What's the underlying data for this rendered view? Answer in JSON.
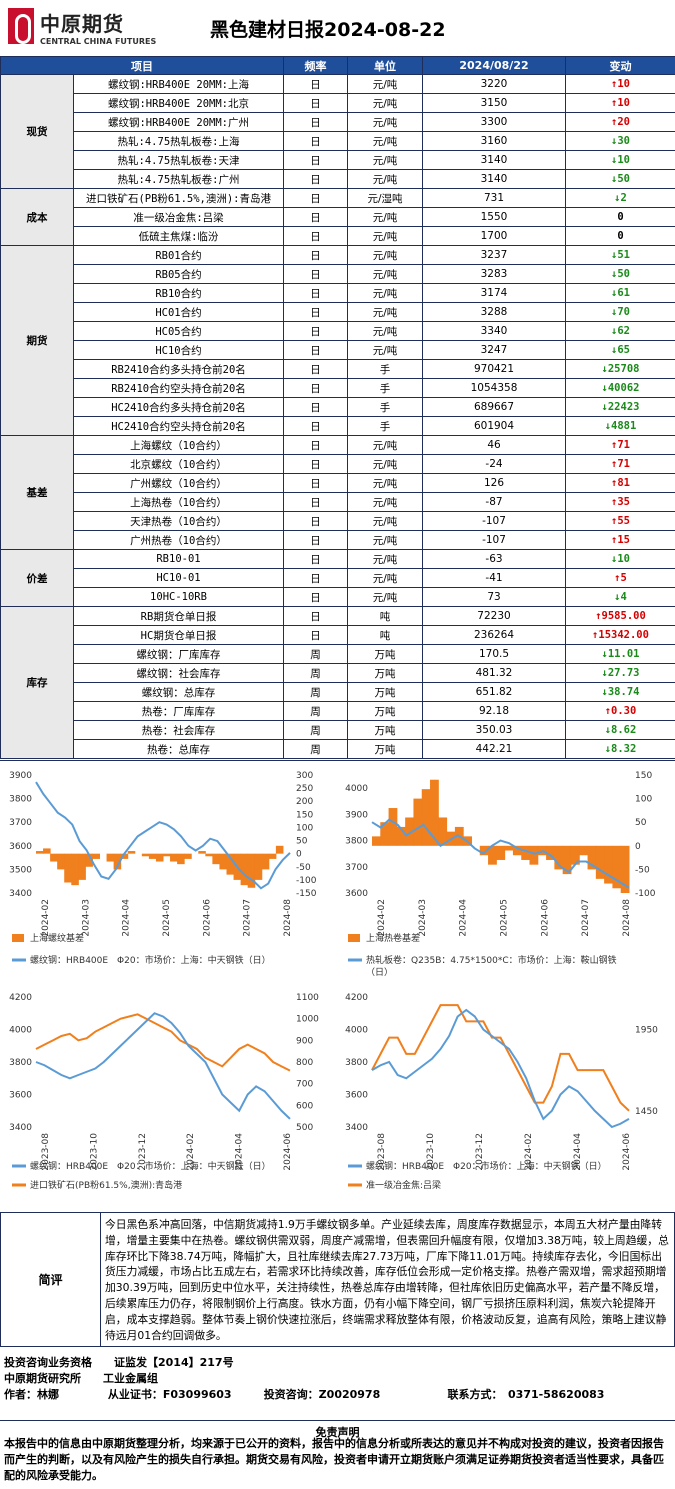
{
  "header": {
    "logo_cn": "中原期货",
    "logo_en": "CENTRAL CHINA FUTURES",
    "title": "黑色建材日报2024-08-22"
  },
  "table": {
    "columns": [
      "项目",
      "频率",
      "单位",
      "2024/08/22",
      "变动"
    ],
    "groups": [
      {
        "name": "现货",
        "rows": [
          {
            "item": "螺纹钢:HRB400E 20MM:上海",
            "freq": "日",
            "unit": "元/吨",
            "value": "3220",
            "change": "10",
            "dir": "up"
          },
          {
            "item": "螺纹钢:HRB400E 20MM:北京",
            "freq": "日",
            "unit": "元/吨",
            "value": "3150",
            "change": "10",
            "dir": "up"
          },
          {
            "item": "螺纹钢:HRB400E 20MM:广州",
            "freq": "日",
            "unit": "元/吨",
            "value": "3300",
            "change": "20",
            "dir": "up"
          },
          {
            "item": "热轧:4.75热轧板卷:上海",
            "freq": "日",
            "unit": "元/吨",
            "value": "3160",
            "change": "30",
            "dir": "down"
          },
          {
            "item": "热轧:4.75热轧板卷:天津",
            "freq": "日",
            "unit": "元/吨",
            "value": "3140",
            "change": "10",
            "dir": "down"
          },
          {
            "item": "热轧:4.75热轧板卷:广州",
            "freq": "日",
            "unit": "元/吨",
            "value": "3140",
            "change": "50",
            "dir": "down"
          }
        ]
      },
      {
        "name": "成本",
        "rows": [
          {
            "item": "进口铁矿石(PB粉61.5%,澳洲):青岛港",
            "freq": "日",
            "unit": "元/湿吨",
            "value": "731",
            "change": "2",
            "dir": "down"
          },
          {
            "item": "准一级冶金焦:吕梁",
            "freq": "日",
            "unit": "元/吨",
            "value": "1550",
            "change": "0",
            "dir": "zero"
          },
          {
            "item": "低硫主焦煤:临汾",
            "freq": "日",
            "unit": "元/吨",
            "value": "1700",
            "change": "0",
            "dir": "zero"
          }
        ]
      },
      {
        "name": "期货",
        "rows": [
          {
            "item": "RB01合约",
            "freq": "日",
            "unit": "元/吨",
            "value": "3237",
            "change": "51",
            "dir": "down"
          },
          {
            "item": "RB05合约",
            "freq": "日",
            "unit": "元/吨",
            "value": "3283",
            "change": "50",
            "dir": "down"
          },
          {
            "item": "RB10合约",
            "freq": "日",
            "unit": "元/吨",
            "value": "3174",
            "change": "61",
            "dir": "down"
          },
          {
            "item": "HC01合约",
            "freq": "日",
            "unit": "元/吨",
            "value": "3288",
            "change": "70",
            "dir": "down"
          },
          {
            "item": "HC05合约",
            "freq": "日",
            "unit": "元/吨",
            "value": "3340",
            "change": "62",
            "dir": "down"
          },
          {
            "item": "HC10合约",
            "freq": "日",
            "unit": "元/吨",
            "value": "3247",
            "change": "65",
            "dir": "down"
          },
          {
            "item": "RB2410合约多头持仓前20名",
            "freq": "日",
            "unit": "手",
            "value": "970421",
            "change": "25708",
            "dir": "down"
          },
          {
            "item": "RB2410合约空头持仓前20名",
            "freq": "日",
            "unit": "手",
            "value": "1054358",
            "change": "40062",
            "dir": "down"
          },
          {
            "item": "HC2410合约多头持仓前20名",
            "freq": "日",
            "unit": "手",
            "value": "689667",
            "change": "22423",
            "dir": "down"
          },
          {
            "item": "HC2410合约空头持仓前20名",
            "freq": "日",
            "unit": "手",
            "value": "601904",
            "change": "4881",
            "dir": "down"
          }
        ]
      },
      {
        "name": "基差",
        "rows": [
          {
            "item": "上海螺纹（10合约）",
            "freq": "日",
            "unit": "元/吨",
            "value": "46",
            "change": "71",
            "dir": "up"
          },
          {
            "item": "北京螺纹（10合约）",
            "freq": "日",
            "unit": "元/吨",
            "value": "-24",
            "change": "71",
            "dir": "up"
          },
          {
            "item": "广州螺纹（10合约）",
            "freq": "日",
            "unit": "元/吨",
            "value": "126",
            "change": "81",
            "dir": "up"
          },
          {
            "item": "上海热卷（10合约）",
            "freq": "日",
            "unit": "元/吨",
            "value": "-87",
            "change": "35",
            "dir": "up"
          },
          {
            "item": "天津热卷（10合约）",
            "freq": "日",
            "unit": "元/吨",
            "value": "-107",
            "change": "55",
            "dir": "up"
          },
          {
            "item": "广州热卷（10合约）",
            "freq": "日",
            "unit": "元/吨",
            "value": "-107",
            "change": "15",
            "dir": "up"
          }
        ]
      },
      {
        "name": "价差",
        "rows": [
          {
            "item": "RB10-01",
            "freq": "日",
            "unit": "元/吨",
            "value": "-63",
            "change": "10",
            "dir": "down"
          },
          {
            "item": "HC10-01",
            "freq": "日",
            "unit": "元/吨",
            "value": "-41",
            "change": "5",
            "dir": "up"
          },
          {
            "item": "10HC-10RB",
            "freq": "日",
            "unit": "元/吨",
            "value": "73",
            "change": "4",
            "dir": "down"
          }
        ]
      },
      {
        "name": "库存",
        "rows": [
          {
            "item": "RB期货仓单日报",
            "freq": "日",
            "unit": "吨",
            "value": "72230",
            "change": "9585.00",
            "dir": "up"
          },
          {
            "item": "HC期货仓单日报",
            "freq": "日",
            "unit": "吨",
            "value": "236264",
            "change": "15342.00",
            "dir": "up"
          },
          {
            "item": "螺纹钢：厂库库存",
            "freq": "周",
            "unit": "万吨",
            "value": "170.5",
            "change": "11.01",
            "dir": "down"
          },
          {
            "item": "螺纹钢：社会库存",
            "freq": "周",
            "unit": "万吨",
            "value": "481.32",
            "change": "27.73",
            "dir": "down"
          },
          {
            "item": "螺纹钢：总库存",
            "freq": "周",
            "unit": "万吨",
            "value": "651.82",
            "change": "38.74",
            "dir": "down"
          },
          {
            "item": "热卷：厂库库存",
            "freq": "周",
            "unit": "万吨",
            "value": "92.18",
            "change": "0.30",
            "dir": "up"
          },
          {
            "item": "热卷：社会库存",
            "freq": "周",
            "unit": "万吨",
            "value": "350.03",
            "change": "8.62",
            "dir": "down"
          },
          {
            "item": "热卷：总库存",
            "freq": "周",
            "unit": "万吨",
            "value": "442.21",
            "change": "8.32",
            "dir": "down"
          }
        ]
      }
    ]
  },
  "chart_data": [
    {
      "type": "line",
      "left_ticks": [
        "3900",
        "3800",
        "3700",
        "3600",
        "3500",
        "3400"
      ],
      "right_ticks": [
        "300",
        "250",
        "200",
        "150",
        "100",
        "50",
        "0",
        "-50",
        "-100",
        "-150"
      ],
      "x_ticks": [
        "2024-02",
        "2024-03",
        "2024-04",
        "2024-05",
        "2024-06",
        "2024-07",
        "2024-08"
      ],
      "ylim": [
        3400,
        3900
      ],
      "y2lim": [
        -150,
        300
      ],
      "line": [
        3870,
        3820,
        3780,
        3740,
        3720,
        3690,
        3620,
        3580,
        3520,
        3470,
        3460,
        3500,
        3560,
        3600,
        3640,
        3660,
        3680,
        3700,
        3690,
        3670,
        3640,
        3600,
        3580,
        3600,
        3630,
        3620,
        3580,
        3540,
        3500,
        3470,
        3450,
        3420,
        3440,
        3500,
        3540,
        3570
      ],
      "area": [
        10,
        20,
        -30,
        -60,
        -110,
        -120,
        -100,
        -50,
        -20,
        0,
        -30,
        -60,
        -20,
        10,
        0,
        -10,
        -20,
        -30,
        -10,
        -30,
        -40,
        -20,
        0,
        10,
        -10,
        -40,
        -60,
        -80,
        -100,
        -120,
        -130,
        -100,
        -60,
        -20,
        30,
        0
      ],
      "legend": [
        "上海螺纹基差",
        "螺纹钢：HRB400E　Φ20：市场价：上海：中天钢铁（日）"
      ]
    },
    {
      "type": "line",
      "left_ticks": [
        "4000",
        "3900",
        "3800",
        "3700",
        "3600"
      ],
      "right_ticks": [
        "150",
        "100",
        "50",
        "0",
        "-50",
        "-100"
      ],
      "x_ticks": [
        "2024-02",
        "2024-03",
        "2024-04",
        "2024-05",
        "2024-06",
        "2024-07",
        "2024-08"
      ],
      "ylim": [
        3600,
        4050
      ],
      "y2lim": [
        -100,
        150
      ],
      "line": [
        3870,
        3850,
        3880,
        3860,
        3820,
        3840,
        3860,
        3820,
        3780,
        3800,
        3820,
        3800,
        3770,
        3750,
        3780,
        3800,
        3790,
        3770,
        3760,
        3750,
        3760,
        3740,
        3700,
        3680,
        3720,
        3720,
        3700,
        3680,
        3660,
        3640,
        3620
      ],
      "area": [
        20,
        50,
        80,
        40,
        60,
        100,
        120,
        140,
        60,
        30,
        40,
        20,
        0,
        -20,
        -40,
        -30,
        -10,
        -20,
        -30,
        -40,
        -20,
        -30,
        -50,
        -60,
        -40,
        -20,
        -50,
        -70,
        -80,
        -90,
        -100
      ],
      "legend": [
        "上海热卷基差",
        "热轧板卷：Q235B：4.75*1500*C：市场价：上海：鞍山钢铁（日）"
      ]
    },
    {
      "type": "line",
      "left_ticks": [
        "4200",
        "4000",
        "3800",
        "3600",
        "3400"
      ],
      "right_ticks": [
        "1100",
        "1000",
        "900",
        "800",
        "700",
        "600",
        "500"
      ],
      "x_ticks": [
        "2023-08",
        "2023-10",
        "2023-12",
        "2024-02",
        "2024-04",
        "2024-06"
      ],
      "ylim": [
        3400,
        4200
      ],
      "y2lim": [
        500,
        1100
      ],
      "line": [
        3800,
        3780,
        3750,
        3720,
        3700,
        3720,
        3740,
        3760,
        3800,
        3850,
        3900,
        3950,
        4000,
        4050,
        4100,
        4080,
        4040,
        3980,
        3900,
        3850,
        3800,
        3700,
        3600,
        3550,
        3500,
        3600,
        3650,
        3620,
        3560,
        3500,
        3450
      ],
      "line2": [
        860,
        880,
        900,
        920,
        930,
        900,
        910,
        940,
        960,
        980,
        1000,
        1010,
        1020,
        1000,
        980,
        960,
        940,
        900,
        880,
        860,
        820,
        800,
        780,
        820,
        860,
        880,
        860,
        840,
        800,
        780,
        760
      ],
      "legend": [
        "螺纹钢：HRB400E　Φ20：市场价：上海：中天钢铁（日）",
        "进口铁矿石(PB粉61.5%,澳洲):青岛港"
      ]
    },
    {
      "type": "line",
      "left_ticks": [
        "4200",
        "4000",
        "3800",
        "3600",
        "3400"
      ],
      "right_ticks": [
        "1950",
        "1450"
      ],
      "x_ticks": [
        "2023-08",
        "2023-10",
        "2023-12",
        "2024-02",
        "2024-04",
        "2024-06"
      ],
      "ylim": [
        3400,
        4200
      ],
      "y2lim": [
        1350,
        2150
      ],
      "line": [
        3750,
        3780,
        3800,
        3720,
        3700,
        3740,
        3780,
        3820,
        3880,
        3960,
        4080,
        4120,
        4080,
        4000,
        3960,
        3920,
        3880,
        3800,
        3700,
        3560,
        3450,
        3500,
        3600,
        3650,
        3620,
        3560,
        3500,
        3450,
        3400,
        3420,
        3450
      ],
      "line2": [
        1700,
        1800,
        1900,
        1900,
        1800,
        1800,
        1900,
        2000,
        2100,
        2100,
        2100,
        2000,
        2000,
        2000,
        1900,
        1900,
        1800,
        1700,
        1600,
        1500,
        1500,
        1600,
        1800,
        1800,
        1700,
        1700,
        1700,
        1700,
        1600,
        1500,
        1450
      ],
      "legend": [
        "螺纹钢：HRB400E　Φ20：市场价：上海：中天钢铁（日）",
        "准一级冶金焦:吕梁"
      ]
    }
  ],
  "comment": {
    "label": "简评",
    "text": "今日黑色系冲高回落，中信期货减持1.9万手螺纹钢多单。产业延续去库，周度库存数据显示，本周五大材产量由降转增，增量主要集中在热卷。螺纹钢供需双弱，周度产减需增，但表需回升幅度有限，仅增加3.38万吨，较上周趋缓，总库存环比下降38.74万吨，降幅扩大，且社库继续去库27.73万吨，厂库下降11.01万吨。持续库存去化，今旧国标出货压力减缓，市场占比五成左右，若需求环比持续改善，库存低位会形成一定价格支撑。热卷产需双增，需求超预期增加30.39万吨，回到历史中位水平，关注持续性，热卷总库存由增转降，但社库依旧历史偏高水平，若产量不降反增，后续累库压力仍存，将限制钢价上行高度。铁水方面，仍有小幅下降空间，钢厂亏损挤压原料利润，焦炭六轮提降开启，成本支撑趋弱。整体节奏上钢价快速拉涨后，终端需求释放整体有限，价格波动反复，追高有风险，策略上建议静待远月01合约回调做多。"
  },
  "footer": {
    "line1": "投资咨询业务资格　　证监发【2014】217号",
    "line2": "中原期货研究所　　工业金属组",
    "author_label": "作者：林娜",
    "cert_label": "从业证书：F03099603",
    "consult_label": "投资咨询：Z0020978",
    "contact_label": "联系方式：　0371-58620083"
  },
  "disclaimer": {
    "title": "免责声明",
    "text": "本报告中的信息由中原期货整理分析，均来源于已公开的资料，报告中的信息分析或所表达的意见并不构成对投资的建议，投资者因报告而产生的判断，以及有风险产生的损失自行承担。期货交易有风险，投资者申请开立期货账户须满足证券期货投资者适当性要求，具备匹配的风险承受能力。"
  },
  "colors": {
    "header_bg": "#1f4e9a",
    "up": "#d40000",
    "down": "#1a8a1a",
    "line_blue": "#5b9bd5",
    "orange": "#f07f1d",
    "logo_red": "#c8102e"
  }
}
